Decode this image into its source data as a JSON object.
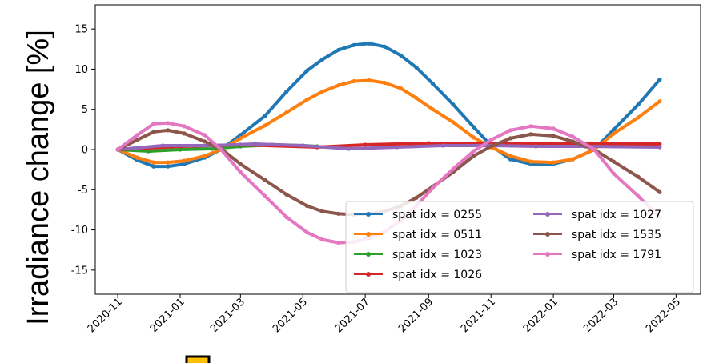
{
  "chart_data": {
    "type": "line",
    "title": "",
    "xlabel": "",
    "ylabel": "Irradiance change [%]",
    "x_ticks": [
      "2020-11",
      "2021-01",
      "2021-03",
      "2021-05",
      "2021-07",
      "2021-09",
      "2021-11",
      "2022-01",
      "2022-03",
      "2022-05"
    ],
    "y_ticks": [
      "15",
      "10",
      "5",
      "0",
      "-5",
      "-10",
      "-15"
    ],
    "xlim": [
      "2020-10-10",
      "2022-05-25"
    ],
    "ylim": [
      -18,
      18
    ],
    "grid": false,
    "legend_position": "lower-right",
    "series": [
      {
        "name": "spat idx = 0255",
        "color": "#1f77b4",
        "x": [
          "2020-11-01",
          "2020-11-20",
          "2020-12-06",
          "2020-12-20",
          "2021-01-05",
          "2021-01-25",
          "2021-02-10",
          "2021-03-01",
          "2021-03-25",
          "2021-04-15",
          "2021-05-05",
          "2021-05-20",
          "2021-06-05",
          "2021-06-20",
          "2021-07-05",
          "2021-07-20",
          "2021-08-05",
          "2021-08-20",
          "2021-09-05",
          "2021-09-25",
          "2021-10-15",
          "2021-11-01",
          "2021-11-20",
          "2021-12-10",
          "2022-01-01",
          "2022-01-20",
          "2022-02-10",
          "2022-03-01",
          "2022-03-25",
          "2022-04-15"
        ],
        "y": [
          0,
          -1.3,
          -2.1,
          -2.1,
          -1.8,
          -1.0,
          0,
          1.8,
          4.2,
          7.2,
          9.8,
          11.2,
          12.4,
          13.0,
          13.2,
          12.8,
          11.7,
          10.2,
          8.2,
          5.6,
          2.8,
          0.5,
          -1.2,
          -1.8,
          -1.8,
          -1.2,
          0,
          2.5,
          5.6,
          8.7
        ]
      },
      {
        "name": "spat idx = 0511",
        "color": "#ff7f0e",
        "x": [
          "2020-11-01",
          "2020-11-20",
          "2020-12-06",
          "2020-12-20",
          "2021-01-05",
          "2021-01-25",
          "2021-02-10",
          "2021-03-01",
          "2021-03-25",
          "2021-04-15",
          "2021-05-05",
          "2021-05-20",
          "2021-06-05",
          "2021-06-20",
          "2021-07-05",
          "2021-07-20",
          "2021-08-05",
          "2021-08-20",
          "2021-09-05",
          "2021-09-25",
          "2021-10-15",
          "2021-11-01",
          "2021-11-20",
          "2021-12-10",
          "2022-01-01",
          "2022-01-20",
          "2022-02-10",
          "2022-03-01",
          "2022-03-25",
          "2022-04-15"
        ],
        "y": [
          0,
          -1.0,
          -1.6,
          -1.6,
          -1.4,
          -0.8,
          0,
          1.4,
          3.0,
          4.6,
          6.2,
          7.2,
          8.0,
          8.5,
          8.6,
          8.3,
          7.6,
          6.4,
          5.0,
          3.4,
          1.5,
          0.3,
          -0.8,
          -1.5,
          -1.6,
          -1.2,
          0,
          2.0,
          4.0,
          6.0
        ]
      },
      {
        "name": "spat idx = 1023",
        "color": "#2ca02c",
        "x": [
          "2020-11-01",
          "2020-12-01",
          "2021-01-01",
          "2021-02-01",
          "2021-03-01",
          "2021-04-01",
          "2021-05-01",
          "2021-05-15"
        ],
        "y": [
          0,
          -0.2,
          0,
          0.1,
          0.4,
          0.6,
          0.5,
          0.4
        ]
      },
      {
        "name": "spat idx = 1026",
        "color": "#d62728",
        "x": [
          "2020-11-01",
          "2021-01-01",
          "2021-03-01",
          "2021-05-15",
          "2021-07-01",
          "2021-09-01",
          "2021-11-01",
          "2022-01-01",
          "2022-03-01",
          "2022-04-15"
        ],
        "y": [
          0,
          0.4,
          0.6,
          0.3,
          0.6,
          0.8,
          0.8,
          0.7,
          0.7,
          0.7
        ]
      },
      {
        "name": "spat idx = 1027",
        "color": "#9467bd",
        "x": [
          "2020-11-01",
          "2020-12-15",
          "2021-02-01",
          "2021-03-15",
          "2021-05-01",
          "2021-06-15",
          "2021-08-01",
          "2021-09-15",
          "2021-11-01",
          "2021-12-15",
          "2022-02-01",
          "2022-04-15"
        ],
        "y": [
          0,
          0.5,
          0.5,
          0.7,
          0.5,
          0.1,
          0.3,
          0.5,
          0.5,
          0.4,
          0.4,
          0.3
        ]
      },
      {
        "name": "spat idx = 1535",
        "color": "#8c564b",
        "x": [
          "2020-11-01",
          "2020-11-20",
          "2020-12-06",
          "2020-12-20",
          "2021-01-05",
          "2021-01-25",
          "2021-02-10",
          "2021-03-01",
          "2021-03-25",
          "2021-04-15",
          "2021-05-05",
          "2021-05-20",
          "2021-06-05",
          "2021-06-20",
          "2021-07-05",
          "2021-07-20",
          "2021-08-05",
          "2021-08-20",
          "2021-09-05",
          "2021-09-25",
          "2021-10-15",
          "2021-11-01",
          "2021-11-20",
          "2021-12-10",
          "2022-01-01",
          "2022-01-20",
          "2022-02-10",
          "2022-03-01",
          "2022-03-25",
          "2022-04-15"
        ],
        "y": [
          0,
          1.2,
          2.2,
          2.4,
          2.0,
          1.0,
          0.1,
          -1.8,
          -3.8,
          -5.6,
          -7.0,
          -7.7,
          -8.0,
          -8.1,
          -8.0,
          -7.7,
          -7.0,
          -6.0,
          -4.6,
          -2.8,
          -0.8,
          0.4,
          1.4,
          1.9,
          1.7,
          1.0,
          0,
          -1.5,
          -3.4,
          -5.3
        ]
      },
      {
        "name": "spat idx = 1791",
        "color": "#e377c2",
        "x": [
          "2020-11-01",
          "2020-11-20",
          "2020-12-06",
          "2020-12-20",
          "2021-01-05",
          "2021-01-25",
          "2021-02-10",
          "2021-03-01",
          "2021-03-25",
          "2021-04-15",
          "2021-05-05",
          "2021-05-20",
          "2021-06-05",
          "2021-06-20",
          "2021-07-05",
          "2021-07-20",
          "2021-08-05",
          "2021-08-20",
          "2021-09-05",
          "2021-09-25",
          "2021-10-15",
          "2021-11-01",
          "2021-11-20",
          "2021-12-10",
          "2022-01-01",
          "2022-01-20",
          "2022-02-10",
          "2022-03-01",
          "2022-03-25",
          "2022-04-15"
        ],
        "y": [
          0,
          1.8,
          3.2,
          3.3,
          2.9,
          1.8,
          0,
          -2.8,
          -5.8,
          -8.4,
          -10.3,
          -11.2,
          -11.6,
          -11.5,
          -11.0,
          -10.2,
          -8.8,
          -7.0,
          -4.8,
          -2.4,
          -0.2,
          1.2,
          2.4,
          2.9,
          2.6,
          1.6,
          0,
          -3.0,
          -5.8,
          -8.4
        ]
      }
    ]
  },
  "colors": {
    "marker_square_fill": "#ffc000",
    "marker_square_stroke": "#000000"
  }
}
